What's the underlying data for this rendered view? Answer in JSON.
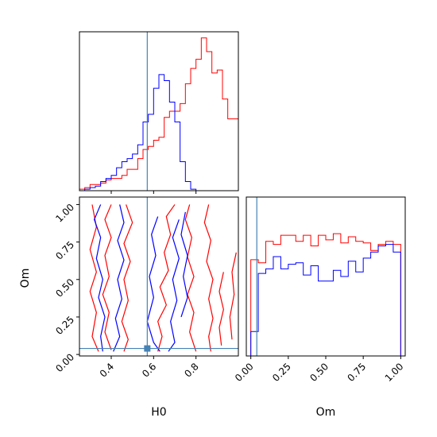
{
  "chart_data": [
    {
      "type": "histogram",
      "panel": "H0 marginal",
      "xlim": [
        0.25,
        1.0
      ],
      "truth": 0.57,
      "bins": [
        0.2625,
        0.2875,
        0.3125,
        0.3375,
        0.3625,
        0.3875,
        0.4125,
        0.4375,
        0.4625,
        0.4875,
        0.5125,
        0.5375,
        0.5625,
        0.5875,
        0.6125,
        0.6375,
        0.6625,
        0.6875,
        0.7125,
        0.7375,
        0.7625,
        0.7875,
        0.8125,
        0.8375,
        0.8625,
        0.8875,
        0.9125,
        0.9375,
        0.9625,
        0.9875
      ],
      "series": [
        {
          "color": "#ff0000",
          "values": [
            0.01,
            0.02,
            0.04,
            0.04,
            0.05,
            0.07,
            0.08,
            0.08,
            0.1,
            0.14,
            0.14,
            0.21,
            0.27,
            0.29,
            0.33,
            0.35,
            0.48,
            0.52,
            0.52,
            0.57,
            0.7,
            0.8,
            0.86,
            1.0,
            0.91,
            0.77,
            0.79,
            0.6,
            0.47,
            0.47
          ]
        },
        {
          "color": "#0000ff",
          "values": [
            0.0,
            0.01,
            0.02,
            0.03,
            0.06,
            0.08,
            0.1,
            0.15,
            0.19,
            0.21,
            0.24,
            0.3,
            0.45,
            0.5,
            0.67,
            0.76,
            0.72,
            0.58,
            0.45,
            0.19,
            0.06,
            0.01,
            0.0,
            0.0,
            0.0,
            0.0,
            0.0,
            0.0,
            0.0,
            0.0
          ]
        }
      ]
    },
    {
      "type": "histogram",
      "panel": "Om marginal",
      "xlabel": "Om",
      "xlim": [
        -0.03,
        1.03
      ],
      "ticks": [
        "0.00",
        "0.25",
        "0.50",
        "0.75",
        "1.00"
      ],
      "truth": 0.04,
      "bins": [
        0.025,
        0.075,
        0.125,
        0.175,
        0.225,
        0.275,
        0.325,
        0.375,
        0.425,
        0.475,
        0.525,
        0.575,
        0.625,
        0.675,
        0.725,
        0.775,
        0.825,
        0.875,
        0.925,
        0.975
      ],
      "series": [
        {
          "color": "#ff0000",
          "values": [
            0.63,
            0.61,
            0.75,
            0.73,
            0.79,
            0.79,
            0.75,
            0.79,
            0.72,
            0.79,
            0.76,
            0.8,
            0.74,
            0.78,
            0.75,
            0.74,
            0.69,
            0.73,
            0.75,
            0.73
          ]
        },
        {
          "color": "#0000ff",
          "values": [
            0.16,
            0.54,
            0.57,
            0.65,
            0.57,
            0.6,
            0.61,
            0.53,
            0.59,
            0.49,
            0.49,
            0.56,
            0.52,
            0.62,
            0.55,
            0.64,
            0.68,
            0.72,
            0.73,
            0.68
          ]
        }
      ]
    },
    {
      "type": "contour",
      "panel": "Om vs H0 joint",
      "xlabel": "H0",
      "ylabel": "Om",
      "xlim": [
        0.25,
        1.0
      ],
      "ylim": [
        -0.01,
        1.05
      ],
      "xticks": [
        "0.4",
        "0.6",
        "0.8"
      ],
      "yticks": [
        "0.00",
        "0.25",
        "0.50",
        "0.75",
        "1.00"
      ],
      "truth": {
        "x": 0.57,
        "y": 0.04
      },
      "series": [
        {
          "color": "#ff0000",
          "contours": [
            [
              [
                0.31,
                1.0
              ],
              [
                0.33,
                0.85
              ],
              [
                0.3,
                0.7
              ],
              [
                0.33,
                0.55
              ],
              [
                0.3,
                0.42
              ],
              [
                0.33,
                0.28
              ],
              [
                0.31,
                0.12
              ],
              [
                0.34,
                0.02
              ]
            ],
            [
              [
                0.4,
                1.0
              ],
              [
                0.37,
                0.9
              ],
              [
                0.4,
                0.78
              ],
              [
                0.37,
                0.66
              ],
              [
                0.39,
                0.52
              ],
              [
                0.36,
                0.4
              ],
              [
                0.39,
                0.28
              ],
              [
                0.37,
                0.15
              ],
              [
                0.4,
                0.03
              ]
            ],
            [
              [
                0.47,
                1.0
              ],
              [
                0.5,
                0.88
              ],
              [
                0.46,
                0.74
              ],
              [
                0.49,
                0.62
              ],
              [
                0.46,
                0.5
              ],
              [
                0.48,
                0.36
              ],
              [
                0.45,
                0.22
              ],
              [
                0.48,
                0.1
              ],
              [
                0.46,
                0.02
              ]
            ],
            [
              [
                0.7,
                1.0
              ],
              [
                0.66,
                0.92
              ],
              [
                0.68,
                0.8
              ],
              [
                0.65,
                0.68
              ],
              [
                0.67,
                0.56
              ],
              [
                0.63,
                0.45
              ],
              [
                0.66,
                0.33
              ],
              [
                0.62,
                0.22
              ],
              [
                0.64,
                0.12
              ],
              [
                0.62,
                0.02
              ]
            ],
            [
              [
                0.77,
                1.0
              ],
              [
                0.75,
                0.9
              ],
              [
                0.78,
                0.78
              ],
              [
                0.76,
                0.65
              ],
              [
                0.79,
                0.52
              ],
              [
                0.76,
                0.4
              ],
              [
                0.79,
                0.28
              ],
              [
                0.77,
                0.15
              ],
              [
                0.8,
                0.02
              ]
            ],
            [
              [
                0.86,
                1.0
              ],
              [
                0.84,
                0.88
              ],
              [
                0.87,
                0.76
              ],
              [
                0.85,
                0.62
              ],
              [
                0.88,
                0.5
              ],
              [
                0.86,
                0.37
              ],
              [
                0.88,
                0.24
              ],
              [
                0.86,
                0.12
              ],
              [
                0.87,
                0.02
              ]
            ],
            [
              [
                0.93,
                0.55
              ],
              [
                0.91,
                0.42
              ],
              [
                0.93,
                0.3
              ],
              [
                0.91,
                0.18
              ],
              [
                0.92,
                0.06
              ]
            ],
            [
              [
                0.99,
                0.68
              ],
              [
                0.97,
                0.55
              ],
              [
                0.98,
                0.4
              ],
              [
                0.96,
                0.25
              ],
              [
                0.97,
                0.1
              ]
            ]
          ]
        },
        {
          "color": "#0000ff",
          "contours": [
            [
              [
                0.35,
                1.0
              ],
              [
                0.32,
                0.9
              ],
              [
                0.35,
                0.78
              ],
              [
                0.33,
                0.64
              ],
              [
                0.36,
                0.5
              ],
              [
                0.34,
                0.38
              ],
              [
                0.37,
                0.25
              ],
              [
                0.35,
                0.12
              ],
              [
                0.36,
                0.02
              ]
            ],
            [
              [
                0.44,
                1.0
              ],
              [
                0.46,
                0.88
              ],
              [
                0.43,
                0.76
              ],
              [
                0.46,
                0.63
              ],
              [
                0.43,
                0.5
              ],
              [
                0.45,
                0.37
              ],
              [
                0.42,
                0.24
              ],
              [
                0.44,
                0.12
              ],
              [
                0.41,
                0.02
              ]
            ],
            [
              [
                0.62,
                0.92
              ],
              [
                0.59,
                0.8
              ],
              [
                0.61,
                0.66
              ],
              [
                0.58,
                0.52
              ],
              [
                0.6,
                0.38
              ],
              [
                0.57,
                0.22
              ],
              [
                0.6,
                0.08
              ],
              [
                0.63,
                0.02
              ]
            ],
            [
              [
                0.72,
                0.9
              ],
              [
                0.69,
                0.78
              ],
              [
                0.72,
                0.64
              ],
              [
                0.69,
                0.5
              ],
              [
                0.71,
                0.36
              ],
              [
                0.68,
                0.22
              ],
              [
                0.7,
                0.08
              ],
              [
                0.67,
                0.02
              ]
            ],
            [
              [
                0.75,
                0.95
              ],
              [
                0.73,
                0.8
              ],
              [
                0.76,
                0.66
              ],
              [
                0.74,
                0.52
              ],
              [
                0.76,
                0.38
              ],
              [
                0.73,
                0.25
              ]
            ]
          ]
        }
      ]
    }
  ]
}
